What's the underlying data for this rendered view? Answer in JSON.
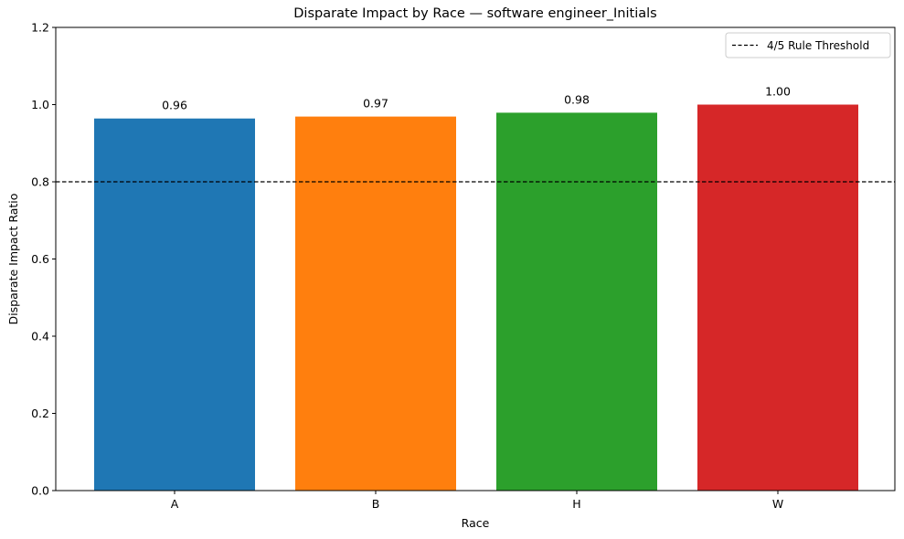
{
  "chart_data": {
    "type": "bar",
    "title": "Disparate Impact by Race — software engineer_Initials",
    "xlabel": "Race",
    "ylabel": "Disparate Impact Ratio",
    "categories": [
      "A",
      "B",
      "H",
      "W"
    ],
    "values": [
      0.964,
      0.969,
      0.979,
      1.0
    ],
    "value_labels": [
      "0.96",
      "0.97",
      "0.98",
      "1.00"
    ],
    "colors": [
      "#1f77b4",
      "#ff7f0e",
      "#2ca02c",
      "#d62728"
    ],
    "ylim": [
      0,
      1.2
    ],
    "yticks": [
      0.0,
      0.2,
      0.4,
      0.6,
      0.8,
      1.0,
      1.2
    ],
    "ytick_labels": [
      "0.0",
      "0.2",
      "0.4",
      "0.6",
      "0.8",
      "1.0",
      "1.2"
    ],
    "threshold": {
      "value": 0.8,
      "label": "4/5 Rule Threshold",
      "color": "#000000",
      "style": "dashed"
    },
    "legend_position": "top-right",
    "grid": false
  }
}
